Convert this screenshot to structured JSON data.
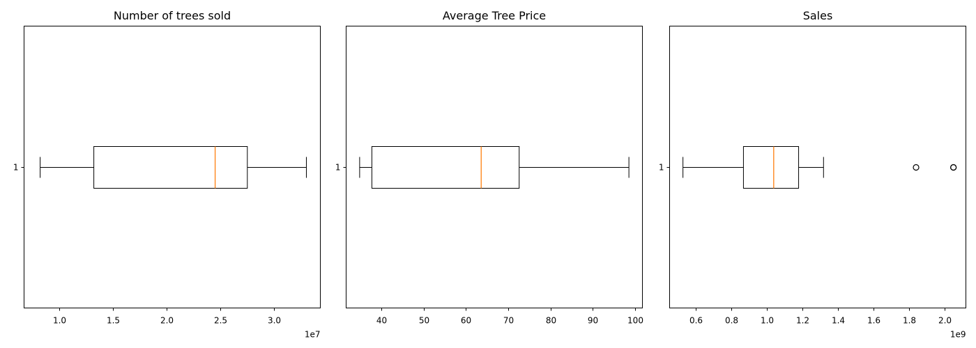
{
  "chart_data": [
    {
      "type": "boxplot",
      "orientation": "horizontal",
      "title": "Number of trees sold",
      "xlabel": "",
      "ylabel": "",
      "xlim": [
        6700000.0,
        34300000.0
      ],
      "x_ticks": [
        10000000.0,
        15000000.0,
        20000000.0,
        25000000.0,
        30000000.0
      ],
      "x_tick_labels": [
        "1.0",
        "1.5",
        "2.0",
        "2.5",
        "3.0"
      ],
      "x_offset_label": "1e7",
      "y_tick_labels": [
        "1"
      ],
      "box": {
        "whisker_low": 8200000.0,
        "q1": 13200000.0,
        "median": 24500000.0,
        "q3": 27500000.0,
        "whisker_high": 33000000.0,
        "outliers": []
      }
    },
    {
      "type": "boxplot",
      "orientation": "horizontal",
      "title": "Average Tree Price",
      "xlabel": "",
      "ylabel": "",
      "xlim": [
        31.6,
        101.8
      ],
      "x_ticks": [
        40,
        50,
        60,
        70,
        80,
        90,
        100
      ],
      "x_tick_labels": [
        "40",
        "50",
        "60",
        "70",
        "80",
        "90",
        "100"
      ],
      "x_offset_label": "",
      "y_tick_labels": [
        "1"
      ],
      "box": {
        "whisker_low": 34.8,
        "q1": 37.7,
        "median": 63.6,
        "q3": 72.6,
        "whisker_high": 98.6,
        "outliers": []
      }
    },
    {
      "type": "boxplot",
      "orientation": "horizontal",
      "title": "Sales",
      "xlabel": "",
      "ylabel": "",
      "xlim": [
        455000000.0,
        2120000000.0
      ],
      "x_ticks": [
        600000000.0,
        800000000.0,
        1000000000.0,
        1200000000.0,
        1400000000.0,
        1600000000.0,
        1800000000.0,
        2000000000.0
      ],
      "x_tick_labels": [
        "0.6",
        "0.8",
        "1.0",
        "1.2",
        "1.4",
        "1.6",
        "1.8",
        "2.0"
      ],
      "x_offset_label": "1e9",
      "y_tick_labels": [
        "1"
      ],
      "box": {
        "whisker_low": 530000000.0,
        "q1": 870000000.0,
        "median": 1040000000.0,
        "q3": 1180000000.0,
        "whisker_high": 1320000000.0,
        "outliers": [
          1840000000.0,
          2050000000.0,
          2050000000.0
        ]
      }
    }
  ],
  "colors": {
    "box": "#000000",
    "median": "#ff7f0e",
    "background": "#ffffff"
  }
}
